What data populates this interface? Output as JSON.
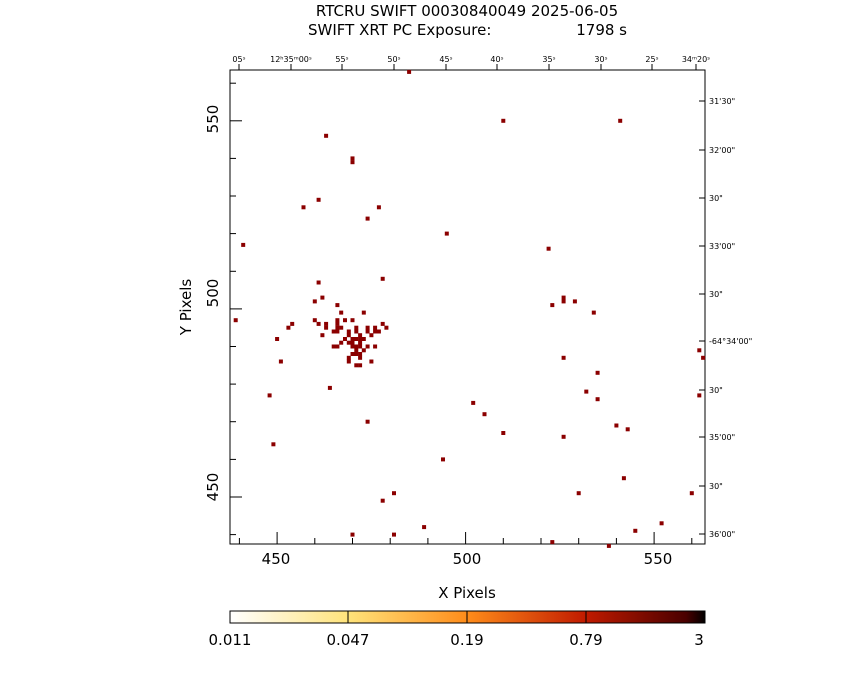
{
  "chart_data": {
    "type": "scatter",
    "title": "RTCRU SWIFT 00030840049 2025-06-05",
    "subtitle_prefix": "SWIFT XRT PC Exposure:",
    "subtitle_value": "1798 s",
    "xlabel": "X Pixels",
    "ylabel": "Y Pixels",
    "xlim": [
      437.5,
      563.5
    ],
    "ylim": [
      437.5,
      563.5
    ],
    "x_ticks": [
      "450",
      "500",
      "550"
    ],
    "y_ticks": [
      "450",
      "500",
      "550"
    ],
    "ra_ticks": [
      "05ˢ",
      "12ʰ35ᵐ00ˢ",
      "55ˢ",
      "50ˢ",
      "45ˢ",
      "40ˢ",
      "35ˢ",
      "30ˢ",
      "25ˢ",
      "34ᵐ20ˢ"
    ],
    "dec_ticks": [
      "31'30\"",
      "32'00\"",
      "30\"",
      "33'00\"",
      "30\"",
      "-64°34'00\"",
      "30\"",
      "35'00\"",
      "30\"",
      "36'00\""
    ],
    "colorbar_ticks": [
      "0.011",
      "0.047",
      "0.19",
      "0.79",
      "3"
    ],
    "marker_color": "#8b0000",
    "points": [
      [
        485,
        563
      ],
      [
        510,
        550
      ],
      [
        541,
        550
      ],
      [
        463,
        546
      ],
      [
        470,
        540
      ],
      [
        470,
        539
      ],
      [
        461,
        529
      ],
      [
        457,
        527
      ],
      [
        477,
        527
      ],
      [
        474,
        524
      ],
      [
        495,
        520
      ],
      [
        441,
        517
      ],
      [
        522,
        516
      ],
      [
        478,
        508
      ],
      [
        461,
        507
      ],
      [
        526,
        503
      ],
      [
        526,
        502
      ],
      [
        529,
        502
      ],
      [
        462,
        503
      ],
      [
        460,
        502
      ],
      [
        466,
        501
      ],
      [
        523,
        501
      ],
      [
        467,
        499
      ],
      [
        473,
        499
      ],
      [
        534,
        499
      ],
      [
        439,
        497
      ],
      [
        460,
        497
      ],
      [
        466,
        497
      ],
      [
        468,
        497
      ],
      [
        470,
        497
      ],
      [
        454,
        496
      ],
      [
        461,
        496
      ],
      [
        463,
        496
      ],
      [
        466,
        496
      ],
      [
        478,
        496
      ],
      [
        453,
        495
      ],
      [
        463,
        495
      ],
      [
        466,
        495
      ],
      [
        467,
        495
      ],
      [
        471,
        495
      ],
      [
        474,
        495
      ],
      [
        476,
        495
      ],
      [
        479,
        495
      ],
      [
        465,
        494
      ],
      [
        466,
        494
      ],
      [
        469,
        494
      ],
      [
        471,
        494
      ],
      [
        474,
        494
      ],
      [
        476,
        494
      ],
      [
        477,
        494
      ],
      [
        462,
        493
      ],
      [
        469,
        493
      ],
      [
        472,
        493
      ],
      [
        475,
        493
      ],
      [
        450,
        492
      ],
      [
        468,
        492
      ],
      [
        470,
        492
      ],
      [
        471,
        492
      ],
      [
        472,
        492
      ],
      [
        473,
        492
      ],
      [
        467,
        491
      ],
      [
        469,
        491
      ],
      [
        470,
        491
      ],
      [
        472,
        491
      ],
      [
        465,
        490
      ],
      [
        466,
        490
      ],
      [
        470,
        490
      ],
      [
        471,
        490
      ],
      [
        472,
        490
      ],
      [
        474,
        490
      ],
      [
        476,
        490
      ],
      [
        471,
        489
      ],
      [
        473,
        489
      ],
      [
        470,
        488
      ],
      [
        471,
        488
      ],
      [
        472,
        488
      ],
      [
        562,
        489
      ],
      [
        469,
        487
      ],
      [
        472,
        487
      ],
      [
        526,
        487
      ],
      [
        563,
        487
      ],
      [
        451,
        486
      ],
      [
        469,
        486
      ],
      [
        475,
        486
      ],
      [
        471,
        485
      ],
      [
        472,
        485
      ],
      [
        535,
        483
      ],
      [
        464,
        479
      ],
      [
        532,
        478
      ],
      [
        448,
        477
      ],
      [
        562,
        477
      ],
      [
        535,
        476
      ],
      [
        502,
        475
      ],
      [
        505,
        472
      ],
      [
        474,
        470
      ],
      [
        540,
        469
      ],
      [
        543,
        468
      ],
      [
        510,
        467
      ],
      [
        526,
        466
      ],
      [
        449,
        464
      ],
      [
        494,
        460
      ],
      [
        542,
        455
      ],
      [
        530,
        451
      ],
      [
        560,
        451
      ],
      [
        481,
        451
      ],
      [
        478,
        449
      ],
      [
        552,
        443
      ],
      [
        489,
        442
      ],
      [
        545,
        441
      ],
      [
        470,
        440
      ],
      [
        481,
        440
      ],
      [
        523,
        438
      ],
      [
        538,
        437
      ]
    ]
  }
}
